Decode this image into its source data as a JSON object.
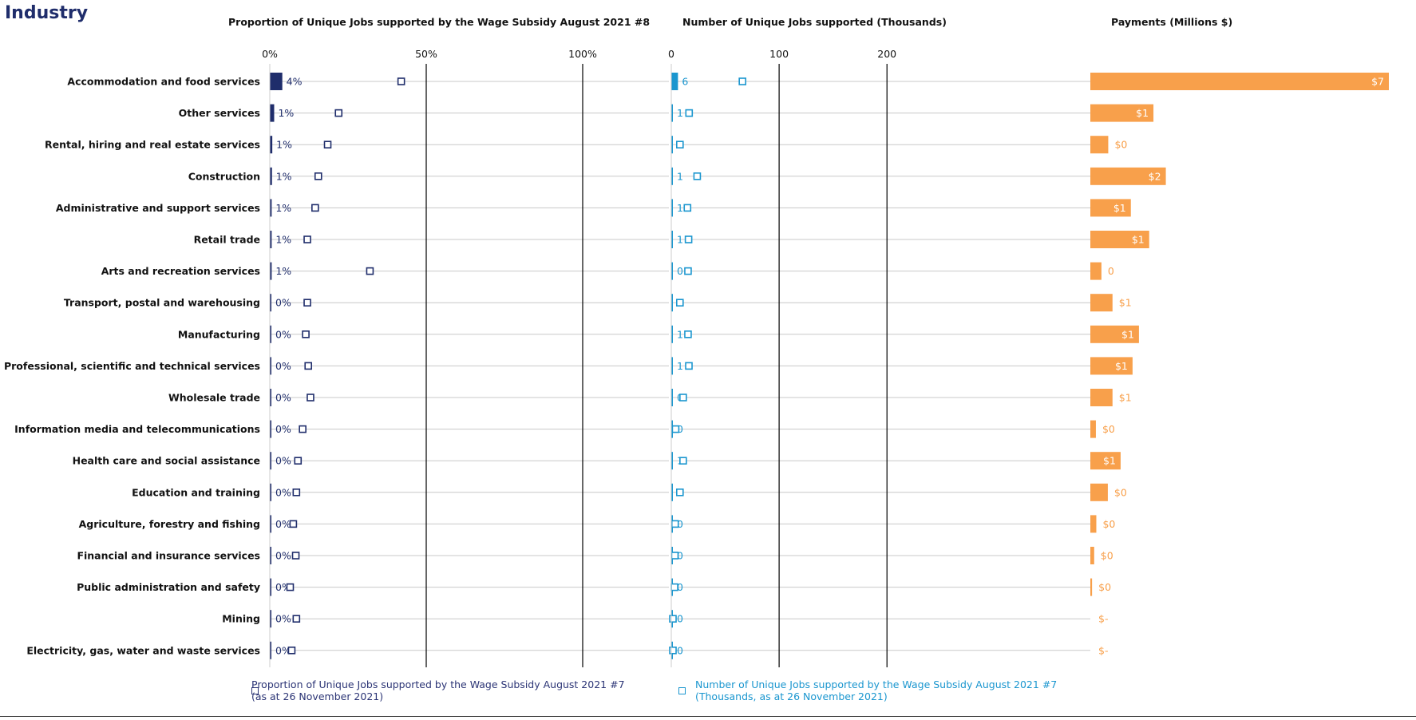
{
  "page_title": "Industry",
  "panel_titles": {
    "proportion": "Proportion of Unique Jobs supported by the  Wage Subsidy August 2021 #8",
    "jobs": "Number of Unique Jobs supported (Thousands)",
    "payments": "Payments (Millions $)"
  },
  "legend": {
    "proportion_prev": "Proportion of Unique Jobs supported by the Wage Subsidy August 2021 #7 (as at 26 November 2021)",
    "jobs_prev": "Number of Unique Jobs supported by the Wage Subsidy August 2021 #7 (Thousands, as at 26 November 2021)"
  },
  "colors": {
    "proportion": "#1f2d6b",
    "jobs": "#1a96cf",
    "payments": "#f8a04b",
    "gridline": "#000000",
    "baseline": "#c8c8c8"
  },
  "chart_data": {
    "type": "bar",
    "categories": [
      "Accommodation and food services",
      "Other services",
      "Rental, hiring and real estate services",
      "Construction",
      "Administrative and support services",
      "Retail trade",
      "Arts and recreation services",
      "Transport, postal and warehousing",
      "Manufacturing",
      "Professional, scientific and technical services",
      "Wholesale trade",
      "Information media and telecommunications",
      "Health care and social assistance",
      "Education and training",
      "Agriculture, forestry and fishing",
      "Financial and insurance services",
      "Public administration and safety",
      "Mining",
      "Electricity, gas, water and waste services"
    ],
    "panels": [
      {
        "key": "proportion",
        "xlim": [
          0,
          100
        ],
        "ticks": [
          0,
          50,
          100
        ],
        "tick_labels": [
          "0%",
          "50%",
          "100%"
        ],
        "values": [
          4.0,
          1.4,
          0.8,
          0.7,
          0.6,
          0.6,
          0.6,
          0.4,
          0.4,
          0.4,
          0.4,
          0.3,
          0.3,
          0.2,
          0.2,
          0.2,
          0.1,
          0.1,
          0.1
        ],
        "labels": [
          "4%",
          "1%",
          "1%",
          "1%",
          "1%",
          "1%",
          "1%",
          "0%",
          "0%",
          "0%",
          "0%",
          "0%",
          "0%",
          "0%",
          "0%",
          "0%",
          "0%",
          "0%",
          "0%"
        ],
        "prev_values": [
          42,
          22,
          18.5,
          15.5,
          14.5,
          12,
          32,
          12,
          11.5,
          12.3,
          13,
          10.5,
          9,
          8.5,
          7.5,
          8.3,
          6.5,
          8.5,
          7
        ]
      },
      {
        "key": "jobs",
        "xlim": [
          0,
          225
        ],
        "ticks": [
          0,
          100,
          200
        ],
        "tick_labels": [
          "0",
          "100",
          "200"
        ],
        "values": [
          6.2,
          1.1,
          0.4,
          1.2,
          0.8,
          1.0,
          0.4,
          0.3,
          0.9,
          0.8,
          0.3,
          0.2,
          0.8,
          0.4,
          0.2,
          0.2,
          0.1,
          0.1,
          0.1
        ],
        "labels": [
          "6",
          "1",
          "0",
          "1",
          "1",
          "1",
          "0",
          "0",
          "1",
          "1",
          "0",
          "0",
          "1",
          "0",
          "0",
          "0",
          "0",
          "0",
          "0"
        ],
        "prev_values": [
          66,
          16.5,
          8,
          24,
          15,
          16,
          15.5,
          8,
          15.5,
          16.3,
          11,
          4,
          11,
          8,
          3.5,
          3.3,
          3,
          1.5,
          1.5
        ]
      },
      {
        "key": "payments",
        "xlim": [
          0,
          7
        ],
        "values": [
          7.0,
          1.48,
          0.42,
          1.77,
          0.95,
          1.38,
          0.26,
          0.52,
          1.14,
          0.99,
          0.52,
          0.13,
          0.71,
          0.41,
          0.14,
          0.09,
          0.04,
          0,
          0
        ],
        "labels": [
          "$7",
          "$1",
          "$0",
          "$2",
          "$1",
          "$1",
          "0",
          "$1",
          "$1",
          "$1",
          "$1",
          "$0",
          "$1",
          "$0",
          "$0",
          "$0",
          "$0",
          "$-",
          "$-"
        ]
      }
    ]
  }
}
